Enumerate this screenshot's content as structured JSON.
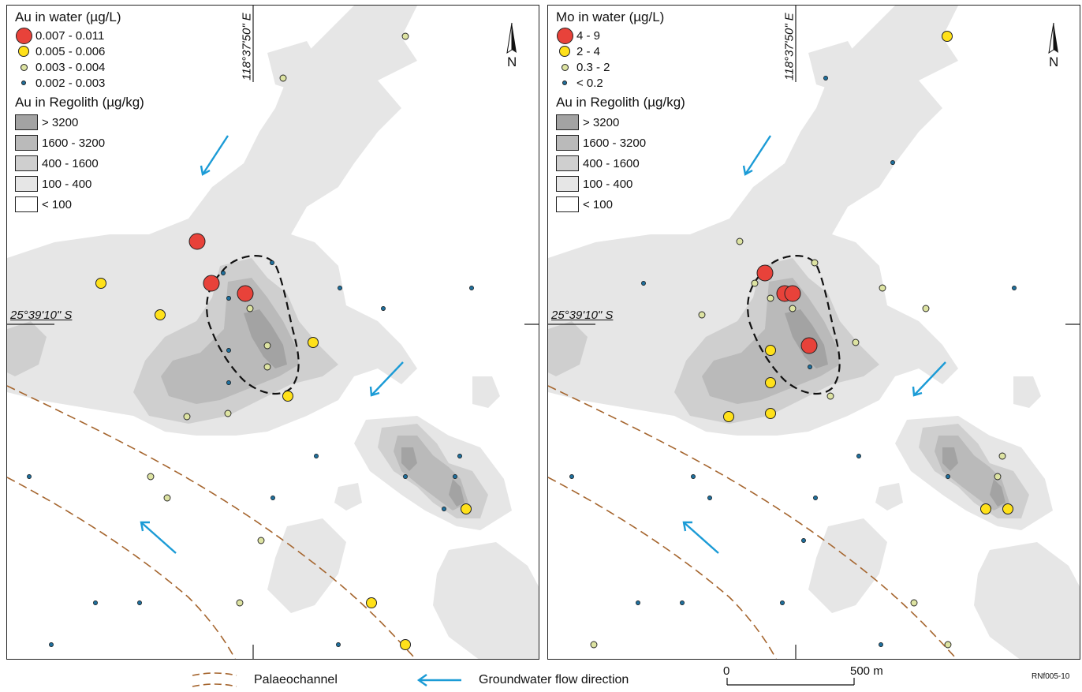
{
  "panels": [
    {
      "water_title": "Au in water (µg/L)",
      "water_classes": [
        {
          "label": "0.007 - 0.011",
          "color": "#e8423a"
        },
        {
          "label": "0.005 - 0.006",
          "color": "#ffe11a"
        },
        {
          "label": "0.003 - 0.004",
          "color": "#dde3a2"
        },
        {
          "label": "0.002 - 0.003",
          "color": "#1f6f9c"
        }
      ]
    },
    {
      "water_title": "Mo in water (µg/L)",
      "water_classes": [
        {
          "label": "4 - 9",
          "color": "#e8423a"
        },
        {
          "label": "2 - 4",
          "color": "#ffe11a"
        },
        {
          "label": "0.3 - 2",
          "color": "#dde3a2"
        },
        {
          "label": "< 0.2",
          "color": "#1f6f9c"
        }
      ]
    }
  ],
  "regolith": {
    "title": "Au in Regolith (µg/kg)",
    "classes": [
      {
        "label": "> 3200",
        "color": "#a3a3a3"
      },
      {
        "label": "1600 - 3200",
        "color": "#bababa"
      },
      {
        "label": "400 - 1600",
        "color": "#cfcfcf"
      },
      {
        "label": "100 - 400",
        "color": "#e6e6e6"
      },
      {
        "label": "< 100",
        "color": "#ffffff"
      }
    ]
  },
  "coordinates": {
    "longitude": "118°37'50\" E",
    "latitude": "25°39'10\" S"
  },
  "north_label": "N",
  "bottom_legend": {
    "palaeochannel": "Palaeochannel",
    "groundwater": "Groundwater flow direction",
    "palaeochannel_color": "#a5652e",
    "arrow_color": "#1b9bd6"
  },
  "scale_bar": {
    "start": "0",
    "end": "500 m"
  },
  "credit": "RNf005-10"
}
